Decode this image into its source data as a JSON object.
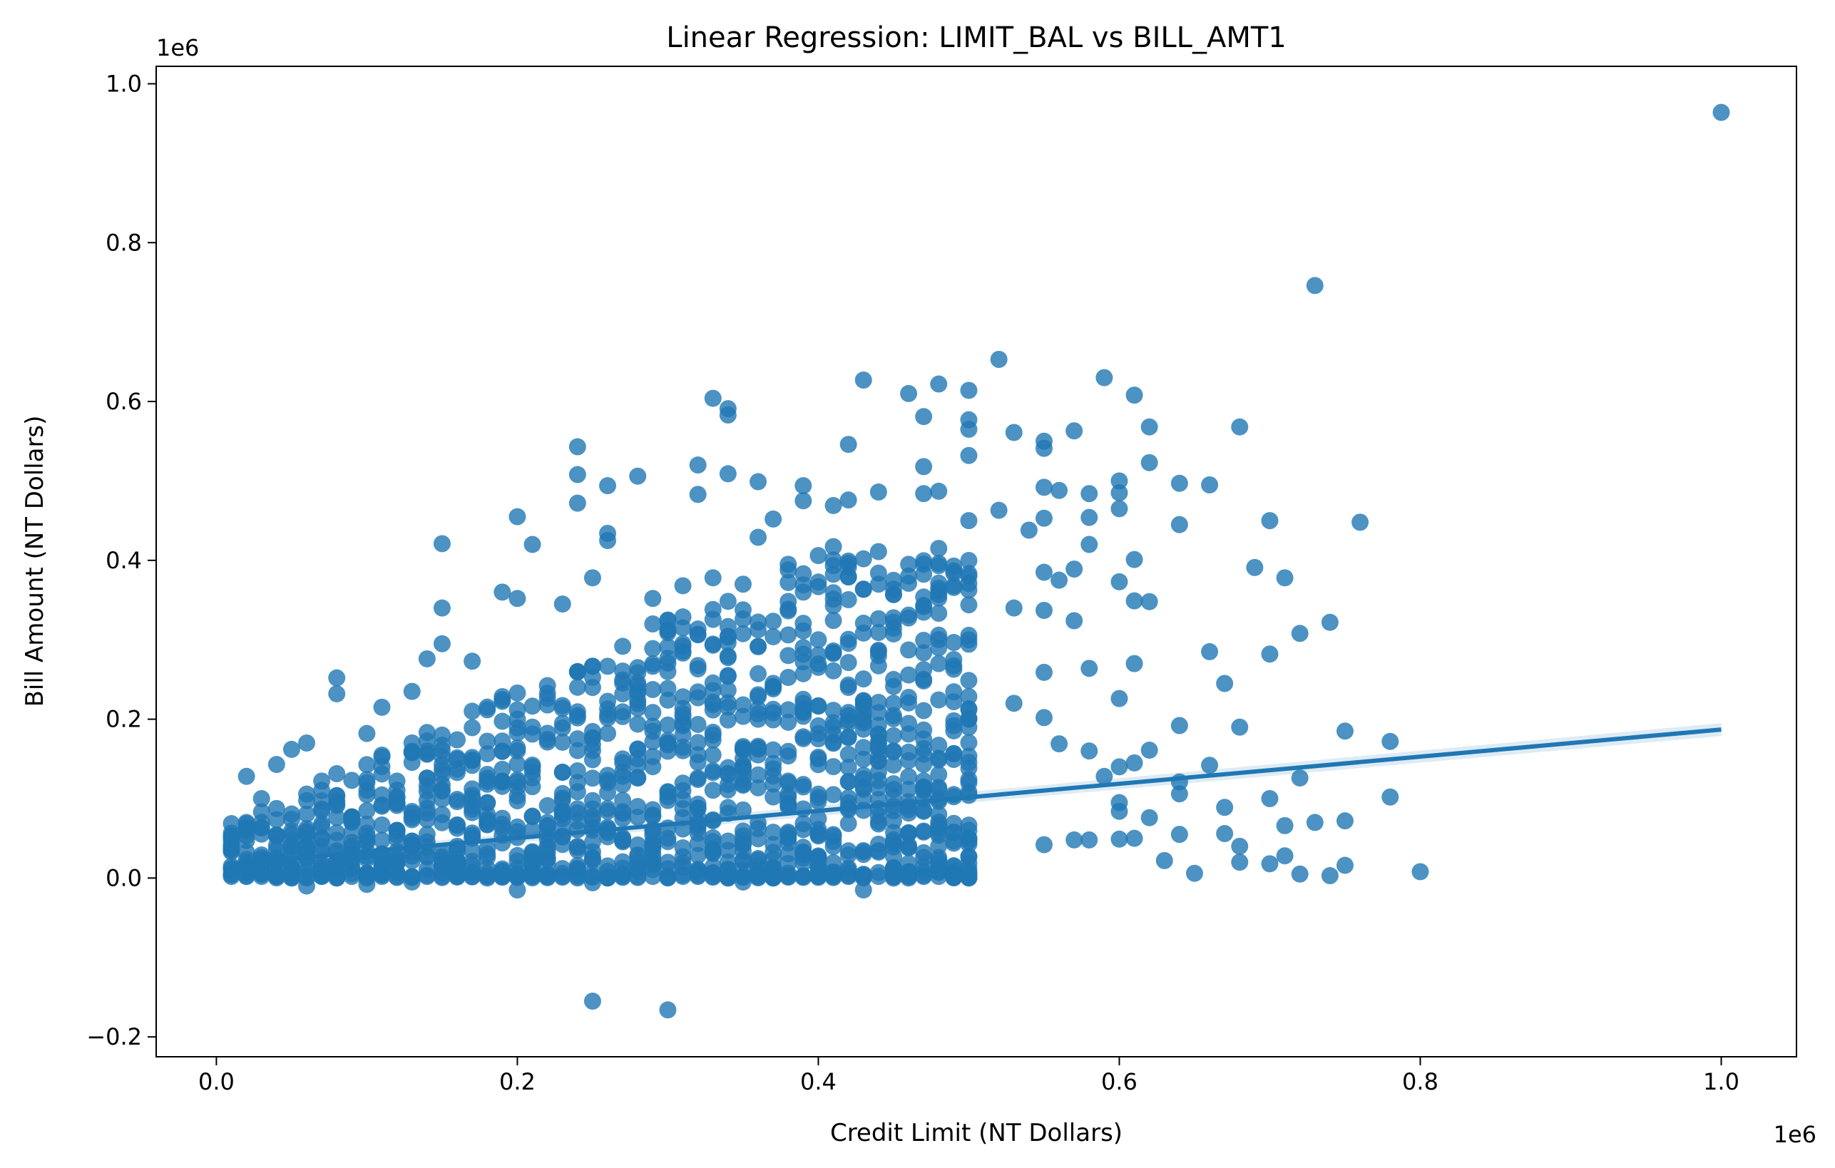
{
  "chart_data": {
    "type": "scatter",
    "title": "Linear Regression: LIMIT_BAL vs BILL_AMT1",
    "xlabel": "Credit Limit (NT Dollars)",
    "ylabel": "Bill Amount (NT Dollars)",
    "x_offset_text": "1e6",
    "y_offset_text": "1e6",
    "xlim": [
      -40000,
      1050000
    ],
    "ylim": [
      -225000,
      1022000
    ],
    "x_ticks": [
      0,
      200000,
      400000,
      600000,
      800000,
      1000000
    ],
    "x_tick_labels": [
      "0.0",
      "0.2",
      "0.4",
      "0.6",
      "0.8",
      "1.0"
    ],
    "y_ticks": [
      -200000,
      0,
      200000,
      400000,
      600000,
      800000,
      1000000
    ],
    "y_tick_labels": [
      "−0.2",
      "0.0",
      "0.2",
      "0.4",
      "0.6",
      "0.8",
      "1.0"
    ],
    "grid": false,
    "point_color": "#1f77b4",
    "line_color": "#1f77b4",
    "point_alpha": 0.8,
    "regression_line": {
      "x": [
        10000,
        1000000
      ],
      "y": [
        18000,
        187000
      ]
    },
    "series": [
      {
        "points": [
          [
            1000000,
            964000
          ],
          [
            730000,
            746000
          ],
          [
            520000,
            653000
          ],
          [
            590000,
            630000
          ],
          [
            430000,
            627000
          ],
          [
            480000,
            622000
          ],
          [
            500000,
            614000
          ],
          [
            460000,
            610000
          ],
          [
            610000,
            608000
          ],
          [
            330000,
            604000
          ],
          [
            340000,
            591000
          ],
          [
            340000,
            583000
          ],
          [
            470000,
            581000
          ],
          [
            500000,
            577000
          ],
          [
            620000,
            568000
          ],
          [
            680000,
            568000
          ],
          [
            570000,
            563000
          ],
          [
            530000,
            561000
          ],
          [
            500000,
            565000
          ],
          [
            550000,
            550000
          ],
          [
            240000,
            543000
          ],
          [
            420000,
            546000
          ],
          [
            550000,
            541000
          ],
          [
            500000,
            532000
          ],
          [
            620000,
            523000
          ],
          [
            320000,
            520000
          ],
          [
            470000,
            518000
          ],
          [
            240000,
            508000
          ],
          [
            280000,
            506000
          ],
          [
            340000,
            509000
          ],
          [
            600000,
            500000
          ],
          [
            360000,
            499000
          ],
          [
            260000,
            494000
          ],
          [
            390000,
            494000
          ],
          [
            550000,
            492000
          ],
          [
            640000,
            497000
          ],
          [
            660000,
            495000
          ],
          [
            320000,
            483000
          ],
          [
            560000,
            488000
          ],
          [
            580000,
            484000
          ],
          [
            600000,
            485000
          ],
          [
            470000,
            484000
          ],
          [
            480000,
            487000
          ],
          [
            440000,
            486000
          ],
          [
            240000,
            472000
          ],
          [
            390000,
            475000
          ],
          [
            420000,
            476000
          ],
          [
            410000,
            469000
          ],
          [
            600000,
            465000
          ],
          [
            520000,
            463000
          ],
          [
            200000,
            455000
          ],
          [
            370000,
            452000
          ],
          [
            550000,
            453000
          ],
          [
            580000,
            454000
          ],
          [
            700000,
            450000
          ],
          [
            760000,
            448000
          ],
          [
            640000,
            445000
          ],
          [
            260000,
            434000
          ],
          [
            360000,
            429000
          ],
          [
            260000,
            425000
          ],
          [
            150000,
            421000
          ],
          [
            210000,
            420000
          ],
          [
            580000,
            420000
          ],
          [
            610000,
            401000
          ],
          [
            540000,
            438000
          ],
          [
            690000,
            391000
          ],
          [
            710000,
            378000
          ],
          [
            600000,
            373000
          ],
          [
            560000,
            375000
          ],
          [
            570000,
            389000
          ],
          [
            550000,
            385000
          ],
          [
            190000,
            360000
          ],
          [
            200000,
            352000
          ],
          [
            150000,
            340000
          ],
          [
            530000,
            340000
          ],
          [
            550000,
            337000
          ],
          [
            610000,
            349000
          ],
          [
            620000,
            348000
          ],
          [
            740000,
            322000
          ],
          [
            570000,
            324000
          ],
          [
            720000,
            308000
          ],
          [
            660000,
            285000
          ],
          [
            700000,
            282000
          ],
          [
            610000,
            270000
          ],
          [
            580000,
            264000
          ],
          [
            550000,
            259000
          ],
          [
            670000,
            245000
          ],
          [
            80000,
            252000
          ],
          [
            80000,
            232000
          ],
          [
            600000,
            226000
          ],
          [
            530000,
            220000
          ],
          [
            550000,
            202000
          ],
          [
            640000,
            192000
          ],
          [
            680000,
            190000
          ],
          [
            750000,
            185000
          ],
          [
            780000,
            172000
          ],
          [
            560000,
            169000
          ],
          [
            580000,
            160000
          ],
          [
            60000,
            170000
          ],
          [
            40000,
            143000
          ],
          [
            20000,
            128000
          ],
          [
            600000,
            140000
          ],
          [
            610000,
            145000
          ],
          [
            620000,
            161000
          ],
          [
            660000,
            142000
          ],
          [
            720000,
            126000
          ],
          [
            640000,
            121000
          ],
          [
            590000,
            128000
          ],
          [
            640000,
            106000
          ],
          [
            780000,
            102000
          ],
          [
            670000,
            89000
          ],
          [
            700000,
            100000
          ],
          [
            600000,
            95000
          ],
          [
            620000,
            76000
          ],
          [
            750000,
            72000
          ],
          [
            730000,
            70000
          ],
          [
            600000,
            84000
          ],
          [
            710000,
            66000
          ],
          [
            680000,
            40000
          ],
          [
            670000,
            56000
          ],
          [
            640000,
            55000
          ],
          [
            600000,
            49000
          ],
          [
            570000,
            48000
          ],
          [
            580000,
            48000
          ],
          [
            550000,
            42000
          ],
          [
            610000,
            50000
          ],
          [
            710000,
            28000
          ],
          [
            750000,
            16000
          ],
          [
            700000,
            18000
          ],
          [
            740000,
            3000
          ],
          [
            720000,
            5000
          ],
          [
            800000,
            8000
          ],
          [
            680000,
            20000
          ],
          [
            630000,
            22000
          ],
          [
            650000,
            6000
          ],
          [
            10000,
            53000
          ],
          [
            10000,
            15000
          ],
          [
            20000,
            70000
          ],
          [
            30000,
            100000
          ],
          [
            50000,
            162000
          ],
          [
            100000,
            182000
          ],
          [
            110000,
            215000
          ],
          [
            130000,
            235000
          ],
          [
            140000,
            276000
          ],
          [
            150000,
            295000
          ],
          [
            170000,
            273000
          ],
          [
            230000,
            345000
          ],
          [
            250000,
            378000
          ],
          [
            290000,
            352000
          ],
          [
            310000,
            368000
          ],
          [
            330000,
            378000
          ],
          [
            350000,
            370000
          ],
          [
            380000,
            395000
          ],
          [
            400000,
            406000
          ],
          [
            440000,
            411000
          ],
          [
            480000,
            415000
          ],
          [
            250000,
            -155000
          ],
          [
            300000,
            -166000
          ],
          [
            430000,
            -15000
          ],
          [
            200000,
            -15000
          ],
          [
            60000,
            -10000
          ],
          [
            100000,
            -8000
          ],
          [
            130000,
            -5000
          ],
          [
            250000,
            -6000
          ],
          [
            350000,
            -5000
          ],
          [
            60000,
            25000
          ],
          [
            90000,
            40000
          ],
          [
            120000,
            60000
          ],
          [
            150000,
            80000
          ],
          [
            180000,
            95000
          ],
          [
            210000,
            115000
          ],
          [
            240000,
            135000
          ],
          [
            270000,
            150000
          ],
          [
            300000,
            170000
          ],
          [
            330000,
            180000
          ],
          [
            360000,
            200000
          ],
          [
            390000,
            220000
          ],
          [
            420000,
            240000
          ],
          [
            450000,
            250000
          ],
          [
            480000,
            270000
          ],
          [
            500000,
            300000
          ],
          [
            100000,
            120000
          ],
          [
            200000,
            200000
          ],
          [
            300000,
            260000
          ],
          [
            400000,
            300000
          ],
          [
            500000,
            380000
          ],
          [
            500000,
            450000
          ],
          [
            500000,
            200000
          ],
          [
            500000,
            120000
          ],
          [
            500000,
            60000
          ],
          [
            450000,
            160000
          ],
          [
            450000,
            90000
          ],
          [
            400000,
            150000
          ],
          [
            350000,
            140000
          ],
          [
            280000,
            90000
          ],
          [
            220000,
            70000
          ],
          [
            160000,
            40000
          ],
          [
            120000,
            20000
          ],
          [
            80000,
            10000
          ],
          [
            40000,
            5000
          ]
        ]
      }
    ]
  }
}
